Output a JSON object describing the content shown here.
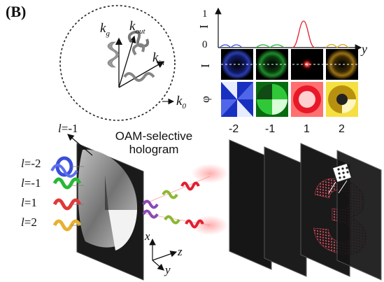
{
  "panel_label": "(B)",
  "k_space": {
    "k_g": "k",
    "k_g_sub": "g",
    "k_out": "k",
    "k_out_sub": "out",
    "k_in": "k",
    "k_in_sub": "in",
    "k_0": "k",
    "k_0_sub": "0"
  },
  "profile_plot": {
    "ylabel": "I",
    "y_top": "1",
    "y_bottom": "0",
    "xlabel": "y",
    "row_intensity_label": "I",
    "row_phase_label": "φ",
    "columns": [
      "-2",
      "-1",
      "1",
      "2"
    ],
    "colors": [
      "#3a4fd8",
      "#22b030",
      "#e02030",
      "#e0a818"
    ]
  },
  "hologram": {
    "title_line1": "OAM-selective",
    "title_line2": "hologram",
    "modes": [
      {
        "prefix": "l",
        "value": "=-1"
      },
      {
        "prefix": "l",
        "value": "=-2"
      },
      {
        "prefix": "l",
        "value": "=-1"
      },
      {
        "prefix": "l",
        "value": "=1"
      },
      {
        "prefix": "l",
        "value": "=2"
      }
    ]
  },
  "axes": {
    "x": "x",
    "y": "y",
    "z": "z"
  },
  "output_digit": "3"
}
